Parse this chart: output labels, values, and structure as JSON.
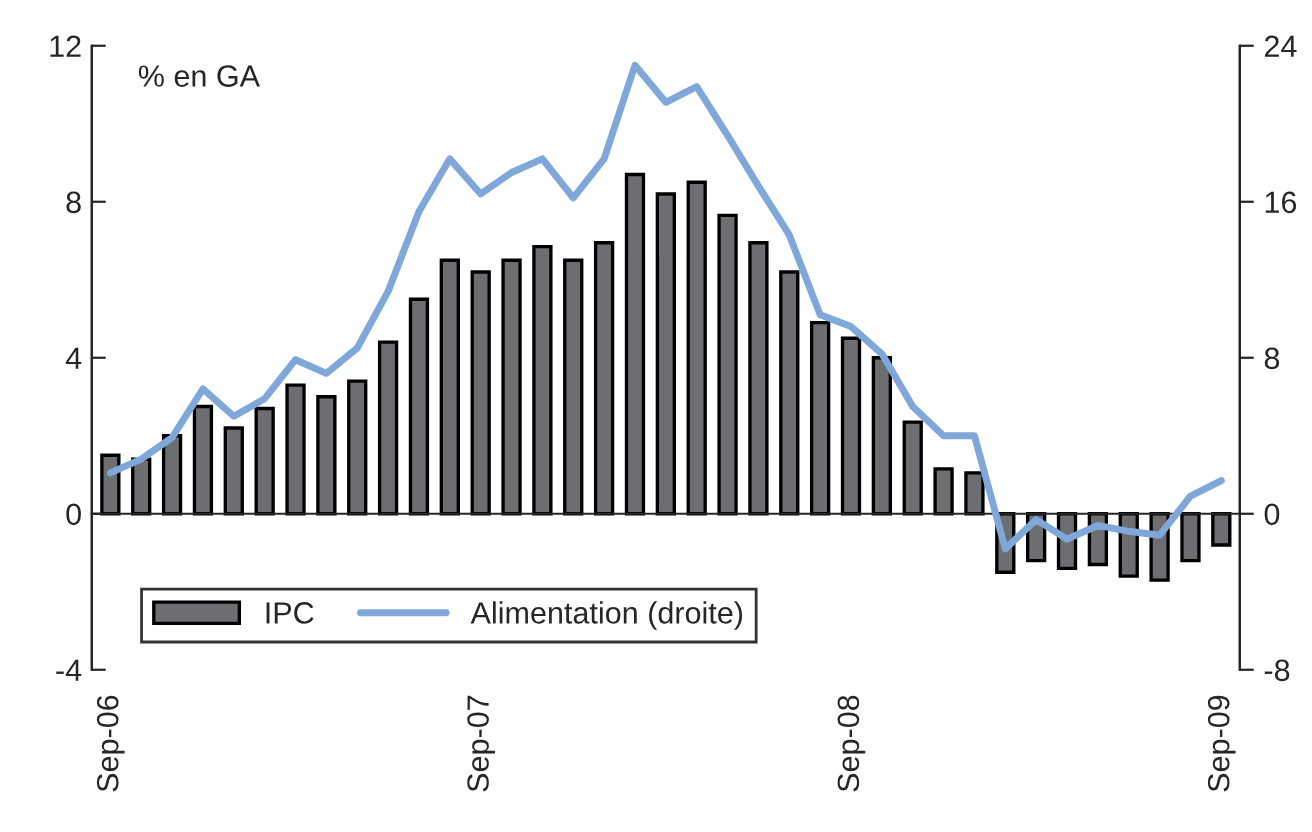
{
  "chart_data": {
    "type": "bar",
    "categories": [
      "Sep-06",
      null,
      null,
      null,
      null,
      null,
      null,
      null,
      null,
      null,
      null,
      null,
      "Sep-07",
      null,
      null,
      null,
      null,
      null,
      null,
      null,
      null,
      null,
      null,
      null,
      "Sep-08",
      null,
      null,
      null,
      null,
      null,
      null,
      null,
      null,
      null,
      null,
      null,
      "Sep-09"
    ],
    "series": [
      {
        "name": "IPC",
        "color": "#6d6e71",
        "values": [
          1.5,
          1.4,
          2.0,
          2.75,
          2.2,
          2.7,
          3.3,
          3.0,
          3.4,
          4.4,
          5.5,
          6.5,
          6.2,
          6.5,
          6.85,
          6.5,
          6.95,
          8.7,
          8.2,
          8.5,
          7.65,
          6.95,
          6.2,
          4.9,
          4.5,
          4.0,
          2.35,
          1.15,
          1.05,
          -1.5,
          -1.2,
          -1.4,
          -1.3,
          -1.6,
          -1.7,
          -1.2,
          -0.8
        ]
      },
      {
        "name": "Alimentation (droite)",
        "type": "line",
        "axis": "y2",
        "color": "#7fa7d9",
        "values": [
          2.1,
          2.8,
          3.9,
          6.4,
          5.0,
          5.9,
          7.9,
          7.2,
          8.5,
          11.4,
          15.5,
          18.2,
          16.4,
          17.5,
          18.2,
          16.2,
          18.2,
          23.0,
          21.1,
          21.9,
          19.4,
          16.8,
          14.3,
          10.2,
          9.6,
          8.2,
          5.5,
          4.0,
          4.0,
          -1.8,
          -0.3,
          -1.3,
          -0.6,
          -0.9,
          -1.1,
          0.9,
          1.7
        ]
      }
    ],
    "ylim": [
      -4,
      12
    ],
    "yticks": [
      -4,
      0,
      4,
      8,
      12
    ],
    "y2lim": [
      -8,
      24
    ],
    "y2ticks": [
      -8,
      0,
      8,
      16,
      24
    ],
    "annotations": [
      "% en GA"
    ],
    "legend": "bottom left"
  }
}
